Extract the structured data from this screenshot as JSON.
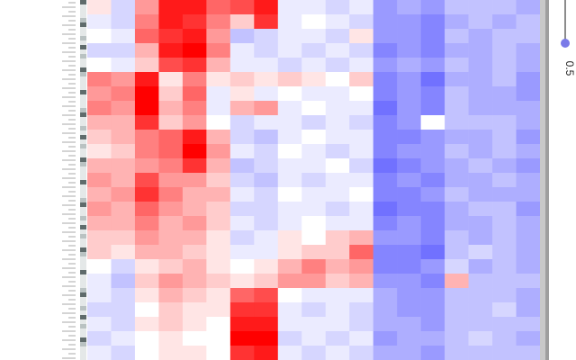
{
  "chart_data": {
    "type": "heatmap",
    "clim": [
      -1,
      1
    ],
    "colors": [
      "#3434ff",
      "#ffffff",
      "#ff0000"
    ],
    "slider_value": 0.5,
    "z": [
      [
        0.1,
        -0.2,
        0.4,
        0.9,
        0.9,
        0.6,
        0.7,
        0.9,
        -0.1,
        -0.1,
        -0.2,
        -0.1,
        -0.5,
        -0.4,
        -0.5,
        -0.3,
        -0.3,
        -0.3,
        -0.4
      ],
      [
        -0.1,
        -0.2,
        0.5,
        0.9,
        0.8,
        0.5,
        0.2,
        0.8,
        -0.1,
        0.0,
        -0.1,
        -0.2,
        -0.5,
        -0.5,
        -0.6,
        -0.4,
        -0.3,
        -0.4,
        -0.3
      ],
      [
        0.0,
        -0.1,
        0.6,
        0.8,
        0.9,
        0.4,
        -0.3,
        -0.2,
        -0.1,
        -0.1,
        -0.2,
        0.1,
        -0.5,
        -0.5,
        -0.6,
        -0.3,
        -0.4,
        -0.3,
        -0.3
      ],
      [
        -0.2,
        -0.2,
        0.3,
        0.9,
        1.0,
        0.5,
        -0.1,
        -0.2,
        -0.1,
        -0.2,
        -0.1,
        -0.2,
        -0.6,
        -0.5,
        -0.6,
        -0.4,
        -0.4,
        -0.3,
        -0.4
      ],
      [
        0.0,
        -0.1,
        0.2,
        0.7,
        0.8,
        0.3,
        -0.1,
        -0.1,
        -0.2,
        -0.1,
        -0.2,
        -0.1,
        -0.5,
        -0.4,
        -0.5,
        -0.3,
        -0.4,
        -0.3,
        -0.4
      ],
      [
        0.5,
        0.4,
        0.9,
        0.1,
        0.5,
        0.1,
        0.2,
        0.1,
        0.2,
        0.1,
        0.0,
        0.2,
        -0.6,
        -0.5,
        -0.7,
        -0.4,
        -0.4,
        -0.3,
        -0.5
      ],
      [
        0.4,
        0.5,
        1.0,
        0.2,
        0.6,
        -0.1,
        0.1,
        -0.1,
        0.0,
        -0.1,
        -0.1,
        0.0,
        -0.6,
        -0.5,
        -0.6,
        -0.3,
        -0.4,
        -0.4,
        -0.5
      ],
      [
        0.5,
        0.4,
        1.0,
        0.3,
        0.5,
        -0.1,
        0.3,
        0.4,
        -0.1,
        0.0,
        -0.1,
        -0.1,
        -0.7,
        -0.5,
        -0.6,
        -0.3,
        -0.4,
        -0.4,
        -0.4
      ],
      [
        0.3,
        0.3,
        0.8,
        0.2,
        0.4,
        0.0,
        -0.2,
        -0.1,
        -0.1,
        -0.2,
        -0.1,
        -0.2,
        -0.6,
        -0.5,
        0.0,
        -0.3,
        -0.3,
        -0.3,
        -0.4
      ],
      [
        0.2,
        0.3,
        0.5,
        0.6,
        0.9,
        0.3,
        -0.2,
        -0.3,
        -0.1,
        0.0,
        -0.1,
        -0.1,
        -0.6,
        -0.6,
        -0.5,
        -0.4,
        -0.4,
        -0.3,
        -0.5
      ],
      [
        0.1,
        0.2,
        0.5,
        0.6,
        1.0,
        0.4,
        -0.1,
        -0.2,
        0.0,
        -0.1,
        -0.2,
        -0.1,
        -0.6,
        -0.5,
        -0.5,
        -0.3,
        -0.4,
        -0.3,
        -0.4
      ],
      [
        0.3,
        0.3,
        0.4,
        0.5,
        0.8,
        0.3,
        -0.3,
        -0.2,
        -0.1,
        -0.1,
        0.0,
        -0.2,
        -0.7,
        -0.6,
        -0.5,
        -0.4,
        -0.3,
        -0.4,
        -0.5
      ],
      [
        0.4,
        0.3,
        0.7,
        0.4,
        0.4,
        0.2,
        -0.2,
        -0.3,
        -0.1,
        -0.2,
        -0.1,
        -0.1,
        -0.6,
        -0.5,
        -0.6,
        -0.4,
        -0.4,
        -0.3,
        -0.4
      ],
      [
        0.3,
        0.4,
        0.8,
        0.5,
        0.3,
        0.3,
        -0.1,
        -0.2,
        0.0,
        -0.1,
        -0.1,
        0.0,
        -0.6,
        -0.6,
        -0.5,
        -0.3,
        -0.4,
        -0.4,
        -0.4
      ],
      [
        0.4,
        0.3,
        0.6,
        0.4,
        0.3,
        0.2,
        -0.2,
        -0.2,
        -0.1,
        -0.1,
        -0.2,
        -0.1,
        -0.7,
        -0.6,
        -0.6,
        -0.4,
        -0.3,
        -0.3,
        -0.5
      ],
      [
        0.3,
        0.3,
        0.5,
        0.3,
        0.4,
        0.2,
        -0.1,
        -0.2,
        -0.1,
        0.0,
        -0.1,
        -0.1,
        -0.6,
        -0.5,
        -0.6,
        -0.4,
        -0.4,
        -0.3,
        -0.4
      ],
      [
        0.2,
        0.2,
        0.4,
        0.3,
        0.3,
        0.1,
        -0.2,
        -0.1,
        0.1,
        0.0,
        0.2,
        0.3,
        -0.5,
        -0.5,
        -0.6,
        -0.3,
        -0.4,
        -0.3,
        -0.4
      ],
      [
        0.2,
        0.1,
        0.3,
        0.3,
        0.2,
        0.1,
        -0.1,
        -0.1,
        0.1,
        0.2,
        0.2,
        0.6,
        -0.6,
        -0.6,
        -0.7,
        -0.3,
        -0.2,
        -0.3,
        -0.4
      ],
      [
        0.0,
        -0.2,
        0.1,
        0.2,
        0.3,
        0.1,
        0.0,
        0.1,
        0.3,
        0.5,
        0.3,
        0.4,
        -0.6,
        -0.6,
        -0.5,
        -0.2,
        -0.4,
        -0.3,
        -0.4
      ],
      [
        -0.1,
        -0.3,
        0.2,
        0.4,
        0.3,
        0.2,
        0.1,
        0.2,
        0.4,
        0.4,
        0.2,
        0.3,
        -0.5,
        -0.5,
        -0.6,
        0.3,
        -0.3,
        -0.3,
        -0.3
      ],
      [
        -0.1,
        -0.2,
        0.1,
        0.3,
        0.2,
        0.1,
        0.6,
        0.7,
        0.0,
        -0.1,
        -0.1,
        -0.1,
        -0.4,
        -0.5,
        -0.5,
        -0.3,
        -0.3,
        -0.3,
        -0.4
      ],
      [
        -0.2,
        -0.2,
        0.0,
        0.2,
        0.1,
        0.1,
        0.8,
        0.8,
        -0.1,
        -0.2,
        -0.1,
        -0.2,
        -0.4,
        -0.5,
        -0.5,
        -0.3,
        -0.3,
        -0.2,
        -0.4
      ],
      [
        -0.1,
        -0.2,
        0.1,
        0.2,
        0.1,
        0.0,
        0.9,
        0.9,
        -0.1,
        -0.1,
        -0.1,
        -0.2,
        -0.4,
        -0.4,
        -0.5,
        -0.3,
        -0.3,
        -0.3,
        -0.3
      ],
      [
        -0.2,
        -0.1,
        0.0,
        0.1,
        0.0,
        0.0,
        1.0,
        1.0,
        -0.2,
        -0.1,
        -0.2,
        -0.1,
        -0.5,
        -0.4,
        -0.4,
        -0.3,
        -0.2,
        -0.3,
        -0.4
      ],
      [
        -0.1,
        -0.2,
        0.0,
        0.1,
        0.1,
        0.0,
        0.8,
        0.9,
        -0.1,
        -0.2,
        -0.1,
        -0.2,
        -0.4,
        -0.4,
        -0.5,
        -0.3,
        -0.3,
        -0.3,
        -0.3
      ]
    ]
  }
}
